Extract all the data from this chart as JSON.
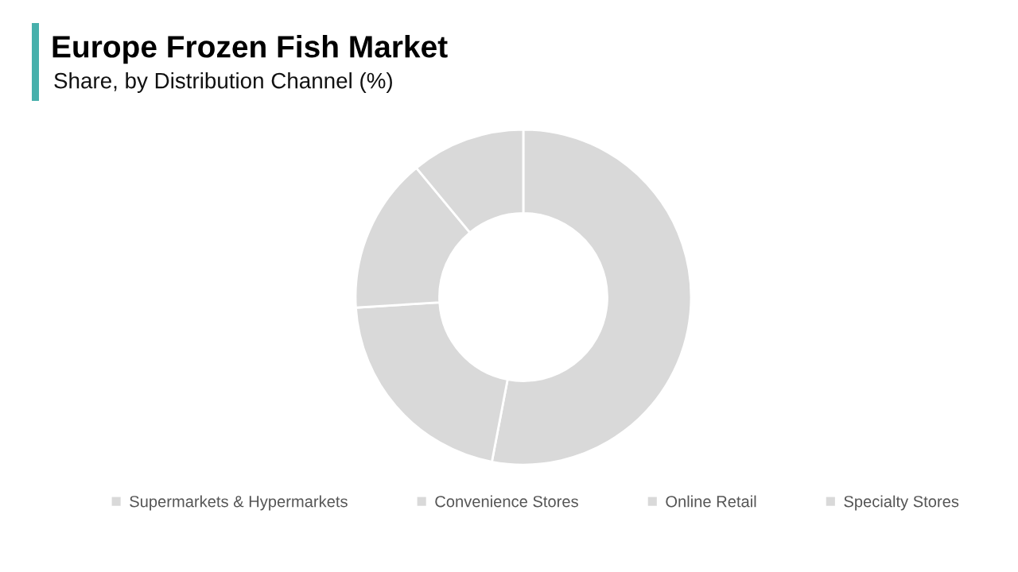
{
  "chart_data": {
    "type": "donut",
    "title": "Europe Frozen Fish Market",
    "subtitle": "Share, by Distribution Channel (%)",
    "categories": [
      "Supermarkets & Hypermarkets",
      "Convenience Stores",
      "Online Retail",
      "Specialty Stores"
    ],
    "values": [
      53,
      21,
      15,
      11
    ],
    "colors": [
      "#d9d9d9",
      "#d9d9d9",
      "#d9d9d9",
      "#d9d9d9"
    ],
    "legend": "bottom"
  }
}
